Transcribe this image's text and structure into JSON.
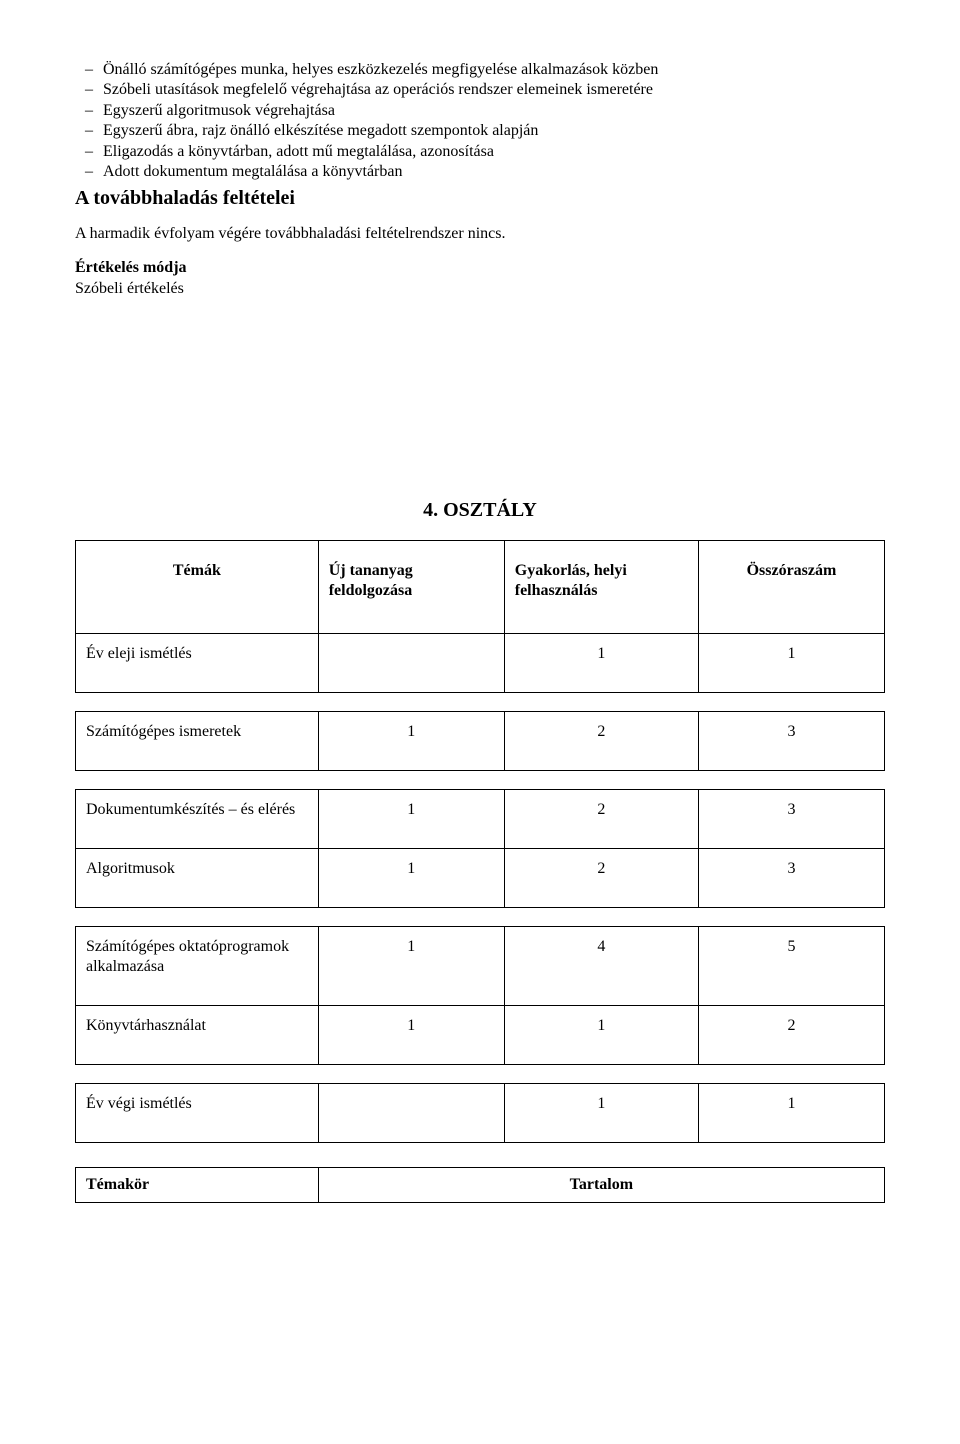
{
  "bullets": [
    "Önálló számítógépes munka, helyes eszközkezelés megfigyelése alkalmazások közben",
    "Szóbeli utasítások megfelelő végrehajtása az operációs rendszer elemeinek ismeretére",
    "Egyszerű algoritmusok végrehajtása",
    "Egyszerű ábra, rajz önálló elkészítése megadott szempontok alapján",
    "Eligazodás a könyvtárban, adott mű megtalálása, azonosítása",
    "Adott dokumentum megtalálása a könyvtárban"
  ],
  "section1_title": "A továbbhaladás feltételei",
  "section1_body": "A harmadik évfolyam végére továbbhaladási feltételrendszer nincs.",
  "eval_title": "Értékelés módja",
  "eval_body": "Szóbeli értékelés",
  "grade_title": "4. OSZTÁLY",
  "table": {
    "headers": [
      "Témák",
      "Új tananyag feldolgozása",
      "Gyakorlás, helyi felhasználás",
      "Összóraszám"
    ],
    "groups": [
      {
        "rows": [
          {
            "label": "Év eleji ismétlés",
            "c1": "",
            "c2": "1",
            "c3": "1"
          }
        ]
      },
      {
        "rows": [
          {
            "label": "Számítógépes ismeretek",
            "c1": "1",
            "c2": "2",
            "c3": "3"
          }
        ]
      },
      {
        "rows": [
          {
            "label": "Dokumentumkészítés – és elérés",
            "c1": "1",
            "c2": "2",
            "c3": "3"
          },
          {
            "label": "Algoritmusok",
            "c1": "1",
            "c2": "2",
            "c3": "3"
          }
        ]
      },
      {
        "rows": [
          {
            "label": "Számítógépes oktatóprogramok alkalmazása",
            "c1": "1",
            "c2": "4",
            "c3": "5"
          },
          {
            "label": "Könyvtárhasználat",
            "c1": "1",
            "c2": "1",
            "c3": "2"
          }
        ]
      },
      {
        "rows": [
          {
            "label": "Év végi ismétlés",
            "c1": "",
            "c2": "1",
            "c3": "1"
          }
        ]
      }
    ],
    "col_widths": [
      "30%",
      "23%",
      "24%",
      "23%"
    ]
  },
  "bottom_table": {
    "col1": "Témakör",
    "col2": "Tartalom",
    "col_widths": [
      "30%",
      "70%"
    ]
  }
}
